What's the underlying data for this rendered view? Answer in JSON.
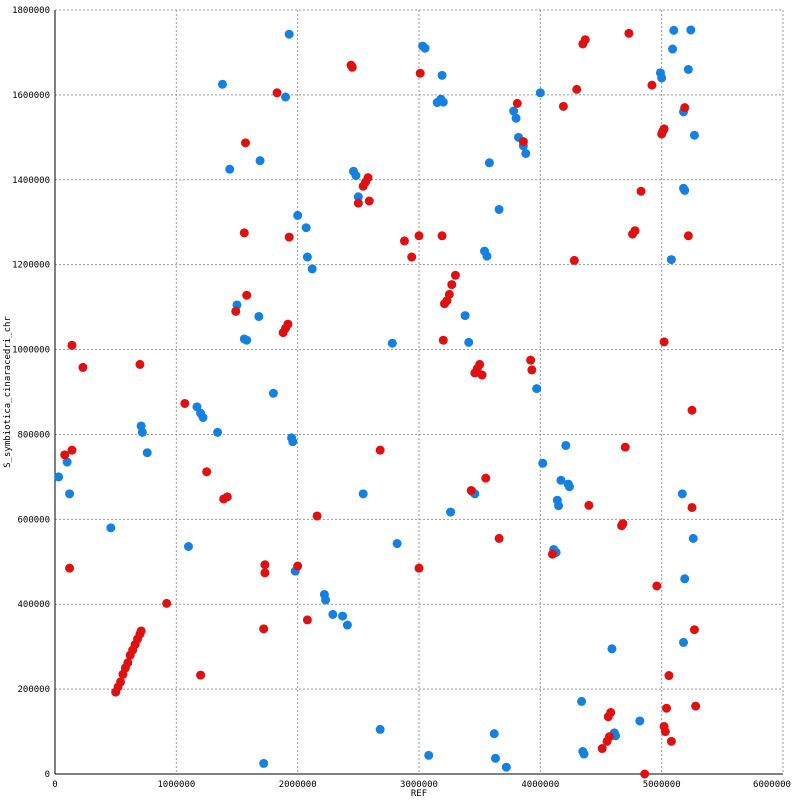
{
  "chart_data": {
    "type": "scatter",
    "title": "",
    "xlabel": "REF",
    "ylabel": "S_symbiotica_cinaracedri_chr",
    "xlim": [
      0,
      6000000
    ],
    "ylim": [
      0,
      1800000
    ],
    "x_ticks": [
      0,
      1000000,
      2000000,
      3000000,
      4000000,
      5000000,
      6000000
    ],
    "y_ticks": [
      0,
      200000,
      400000,
      600000,
      800000,
      1000000,
      1200000,
      1400000,
      1600000,
      1800000
    ],
    "x_tick_labels": [
      "0",
      "1000000",
      "2000000",
      "3000000",
      "4000000",
      "5000000",
      "6000000"
    ],
    "y_tick_labels": [
      "0",
      "200000",
      "400000",
      "600000",
      "800000",
      "1000000",
      "1200000",
      "1400000",
      "1600000",
      "1800000"
    ],
    "grid": true,
    "legend": "none",
    "colors": {
      "forward": "#1480e0",
      "reverse": "#e01010"
    },
    "series": [
      {
        "color": "#1480e0",
        "points": [
          [
            30000,
            700000
          ],
          [
            100000,
            735000
          ],
          [
            120000,
            660000
          ],
          [
            460000,
            580000
          ],
          [
            710000,
            820000
          ],
          [
            720000,
            805000
          ],
          [
            760000,
            757000
          ],
          [
            1100000,
            536000
          ],
          [
            1170000,
            865000
          ],
          [
            1200000,
            850000
          ],
          [
            1220000,
            840000
          ],
          [
            1340000,
            805000
          ],
          [
            1380000,
            1625000
          ],
          [
            1440000,
            1425000
          ],
          [
            1500000,
            1105000
          ],
          [
            1560000,
            1025000
          ],
          [
            1580000,
            1022000
          ],
          [
            1680000,
            1078000
          ],
          [
            1690000,
            1445000
          ],
          [
            1720000,
            25000
          ],
          [
            1800000,
            897000
          ],
          [
            1900000,
            1595000
          ],
          [
            1930000,
            1743000
          ],
          [
            1950000,
            792000
          ],
          [
            1960000,
            783000
          ],
          [
            1980000,
            478000
          ],
          [
            2000000,
            1316000
          ],
          [
            2070000,
            1287000
          ],
          [
            2080000,
            1218000
          ],
          [
            2120000,
            1190000
          ],
          [
            2220000,
            423000
          ],
          [
            2230000,
            410000
          ],
          [
            2290000,
            376000
          ],
          [
            2370000,
            372000
          ],
          [
            2410000,
            351000
          ],
          [
            2460000,
            1420000
          ],
          [
            2480000,
            1410000
          ],
          [
            2500000,
            1360000
          ],
          [
            2540000,
            660000
          ],
          [
            2680000,
            105000
          ],
          [
            2780000,
            1015000
          ],
          [
            2820000,
            543000
          ],
          [
            3030000,
            1715000
          ],
          [
            3050000,
            1710000
          ],
          [
            3080000,
            44000
          ],
          [
            3150000,
            1582000
          ],
          [
            3180000,
            1590000
          ],
          [
            3190000,
            1646000
          ],
          [
            3200000,
            1583000
          ],
          [
            3260000,
            617000
          ],
          [
            3380000,
            1080000
          ],
          [
            3410000,
            1017000
          ],
          [
            3440000,
            665000
          ],
          [
            3460000,
            660000
          ],
          [
            3540000,
            1232000
          ],
          [
            3560000,
            1220000
          ],
          [
            3580000,
            1440000
          ],
          [
            3620000,
            95000
          ],
          [
            3630000,
            37000
          ],
          [
            3660000,
            1330000
          ],
          [
            3720000,
            16000
          ],
          [
            3780000,
            1562000
          ],
          [
            3800000,
            1545000
          ],
          [
            3820000,
            1500000
          ],
          [
            3860000,
            1480000
          ],
          [
            3880000,
            1462000
          ],
          [
            3970000,
            908000
          ],
          [
            4000000,
            1605000
          ],
          [
            4020000,
            732000
          ],
          [
            4110000,
            529000
          ],
          [
            4130000,
            522000
          ],
          [
            4140000,
            645000
          ],
          [
            4150000,
            632000
          ],
          [
            4170000,
            692000
          ],
          [
            4210000,
            774000
          ],
          [
            4230000,
            683000
          ],
          [
            4240000,
            677000
          ],
          [
            4340000,
            171000
          ],
          [
            4350000,
            53000
          ],
          [
            4360000,
            47000
          ],
          [
            4590000,
            295000
          ],
          [
            4610000,
            97000
          ],
          [
            4620000,
            90000
          ],
          [
            4820000,
            125000
          ],
          [
            4990000,
            1652000
          ],
          [
            5000000,
            1640000
          ],
          [
            5080000,
            1212000
          ],
          [
            5090000,
            1708000
          ],
          [
            5100000,
            1752000
          ],
          [
            5170000,
            660000
          ],
          [
            5180000,
            1380000
          ],
          [
            5190000,
            1375000
          ],
          [
            5180000,
            1560000
          ],
          [
            5190000,
            460000
          ],
          [
            5180000,
            310000
          ],
          [
            5220000,
            1660000
          ],
          [
            5240000,
            1753000
          ],
          [
            5260000,
            555000
          ],
          [
            5270000,
            1505000
          ]
        ]
      },
      {
        "color": "#e01010",
        "points": [
          [
            80000,
            752000
          ],
          [
            120000,
            485000
          ],
          [
            140000,
            763000
          ],
          [
            140000,
            1010000
          ],
          [
            230000,
            958000
          ],
          [
            500000,
            193000
          ],
          [
            520000,
            205000
          ],
          [
            540000,
            217000
          ],
          [
            560000,
            235000
          ],
          [
            580000,
            250000
          ],
          [
            600000,
            262000
          ],
          [
            620000,
            280000
          ],
          [
            640000,
            292000
          ],
          [
            660000,
            305000
          ],
          [
            680000,
            318000
          ],
          [
            700000,
            330000
          ],
          [
            710000,
            337000
          ],
          [
            700000,
            965000
          ],
          [
            920000,
            402000
          ],
          [
            1070000,
            873000
          ],
          [
            1200000,
            233000
          ],
          [
            1250000,
            712000
          ],
          [
            1390000,
            648000
          ],
          [
            1420000,
            653000
          ],
          [
            1490000,
            1090000
          ],
          [
            1560000,
            1275000
          ],
          [
            1570000,
            1487000
          ],
          [
            1580000,
            1128000
          ],
          [
            1720000,
            342000
          ],
          [
            1730000,
            474000
          ],
          [
            1730000,
            493000
          ],
          [
            1830000,
            1605000
          ],
          [
            1880000,
            1040000
          ],
          [
            1900000,
            1050000
          ],
          [
            1920000,
            1060000
          ],
          [
            1930000,
            1265000
          ],
          [
            2000000,
            490000
          ],
          [
            2080000,
            363000
          ],
          [
            2160000,
            608000
          ],
          [
            2440000,
            1670000
          ],
          [
            2450000,
            1665000
          ],
          [
            2500000,
            1345000
          ],
          [
            2540000,
            1385000
          ],
          [
            2560000,
            1395000
          ],
          [
            2580000,
            1405000
          ],
          [
            2590000,
            1350000
          ],
          [
            2680000,
            763000
          ],
          [
            2880000,
            1256000
          ],
          [
            2940000,
            1218000
          ],
          [
            3000000,
            485000
          ],
          [
            3000000,
            1268000
          ],
          [
            3010000,
            1651000
          ],
          [
            3190000,
            1268000
          ],
          [
            3200000,
            1022000
          ],
          [
            3210000,
            1108000
          ],
          [
            3230000,
            1115000
          ],
          [
            3250000,
            1130000
          ],
          [
            3270000,
            1153000
          ],
          [
            3300000,
            1175000
          ],
          [
            3430000,
            668000
          ],
          [
            3460000,
            945000
          ],
          [
            3480000,
            955000
          ],
          [
            3500000,
            965000
          ],
          [
            3520000,
            940000
          ],
          [
            3550000,
            697000
          ],
          [
            3660000,
            555000
          ],
          [
            3810000,
            1580000
          ],
          [
            3860000,
            1490000
          ],
          [
            3920000,
            975000
          ],
          [
            3930000,
            952000
          ],
          [
            4100000,
            518000
          ],
          [
            4190000,
            1573000
          ],
          [
            4280000,
            1210000
          ],
          [
            4300000,
            1613000
          ],
          [
            4350000,
            1720000
          ],
          [
            4370000,
            1730000
          ],
          [
            4400000,
            633000
          ],
          [
            4510000,
            60000
          ],
          [
            4550000,
            77000
          ],
          [
            4570000,
            88000
          ],
          [
            4560000,
            135000
          ],
          [
            4580000,
            145000
          ],
          [
            4670000,
            585000
          ],
          [
            4680000,
            590000
          ],
          [
            4700000,
            770000
          ],
          [
            4730000,
            1745000
          ],
          [
            4760000,
            1272000
          ],
          [
            4780000,
            1280000
          ],
          [
            4830000,
            1373000
          ],
          [
            4860000,
            0
          ],
          [
            4920000,
            1623000
          ],
          [
            4960000,
            443000
          ],
          [
            5000000,
            1508000
          ],
          [
            5010000,
            1515000
          ],
          [
            5020000,
            1520000
          ],
          [
            5020000,
            1018000
          ],
          [
            5020000,
            112000
          ],
          [
            5030000,
            100000
          ],
          [
            5040000,
            155000
          ],
          [
            5060000,
            232000
          ],
          [
            5080000,
            77000
          ],
          [
            5190000,
            1570000
          ],
          [
            5220000,
            1268000
          ],
          [
            5250000,
            857000
          ],
          [
            5250000,
            628000
          ],
          [
            5270000,
            340000
          ],
          [
            5280000,
            160000
          ]
        ]
      }
    ]
  }
}
